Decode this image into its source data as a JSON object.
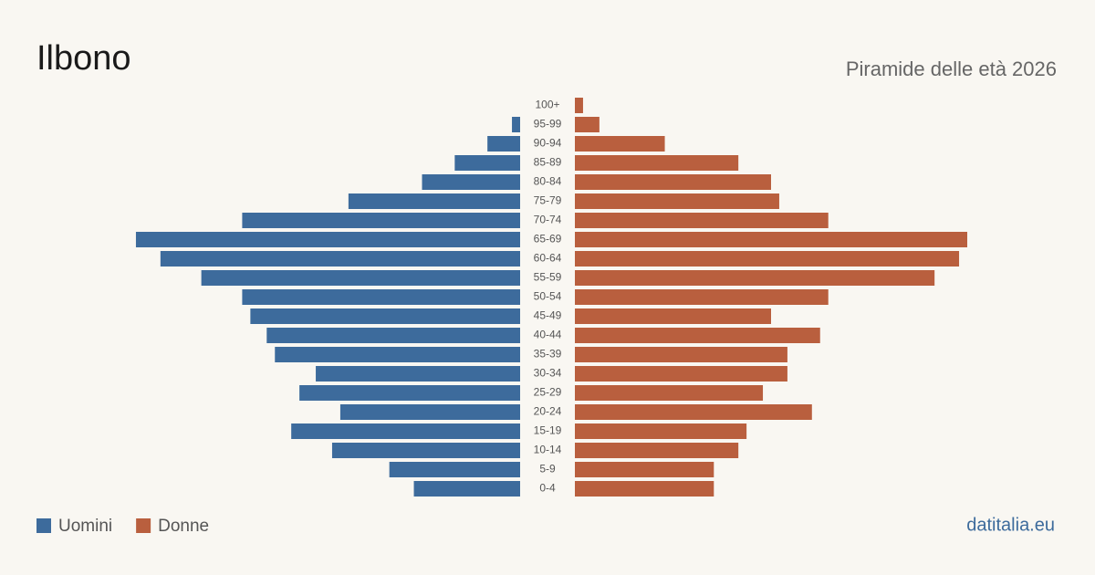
{
  "chart_data": {
    "type": "pyramid",
    "title": "Ilbono",
    "subtitle": "Piramide delle età 2026",
    "categories": [
      "100+",
      "95-99",
      "90-94",
      "85-89",
      "80-84",
      "75-79",
      "70-74",
      "65-69",
      "60-64",
      "55-59",
      "50-54",
      "45-49",
      "40-44",
      "35-39",
      "30-34",
      "25-29",
      "20-24",
      "15-19",
      "10-14",
      "5-9",
      "0-4"
    ],
    "series": [
      {
        "name": "Uomini",
        "color": "#3d6b9c",
        "values": [
          0,
          1,
          4,
          8,
          12,
          21,
          34,
          47,
          44,
          39,
          34,
          33,
          31,
          30,
          25,
          27,
          22,
          28,
          23,
          16,
          13
        ]
      },
      {
        "name": "Donne",
        "color": "#b95f3e",
        "values": [
          1,
          3,
          11,
          20,
          24,
          25,
          31,
          48,
          47,
          44,
          31,
          24,
          30,
          26,
          26,
          23,
          29,
          21,
          20,
          17,
          17
        ]
      }
    ],
    "source": "datitalia.eu"
  }
}
